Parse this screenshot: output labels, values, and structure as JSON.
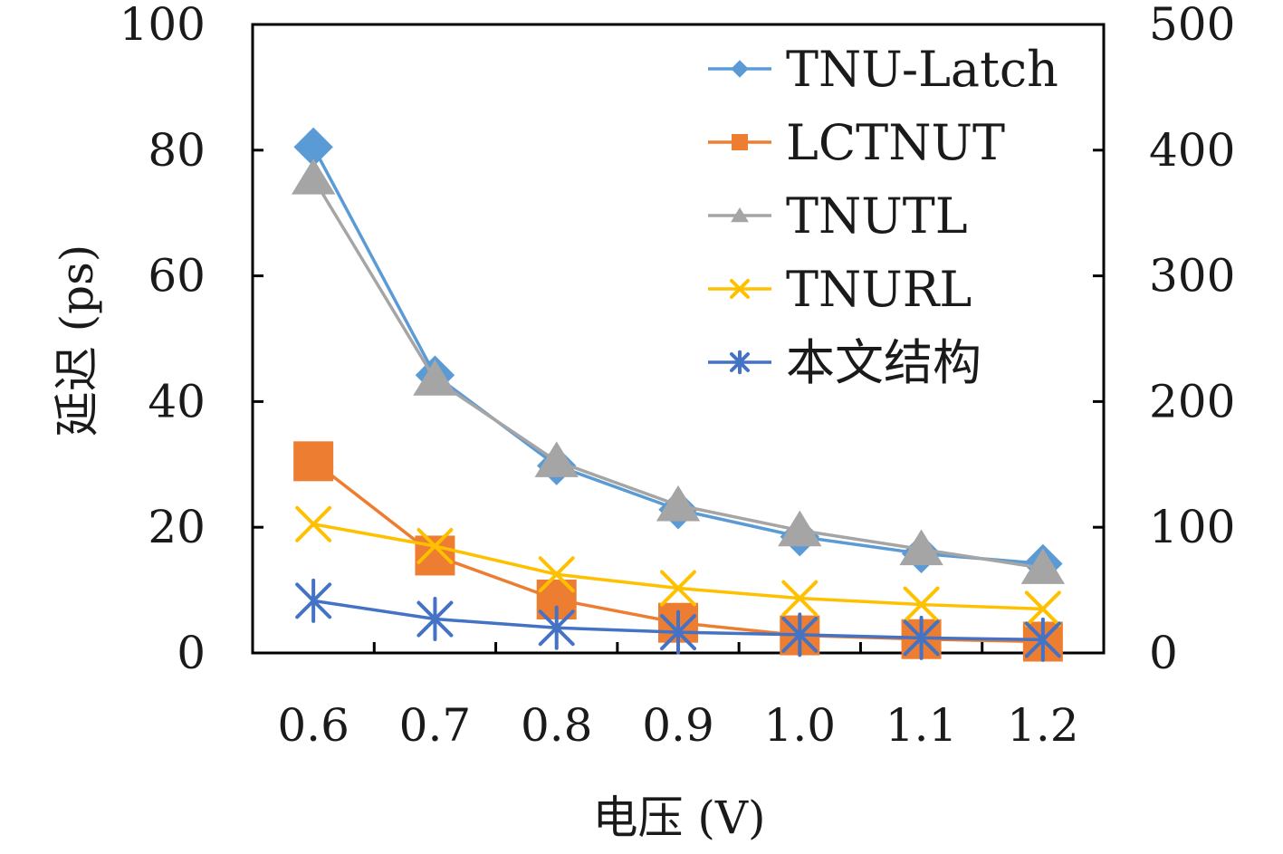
{
  "chart_data": {
    "type": "line",
    "title": "",
    "xlabel": "电压 (V)",
    "ylabel": "延迟 (ps)",
    "categories": [
      "0.6",
      "0.7",
      "0.8",
      "0.9",
      "1.0",
      "1.1",
      "1.2"
    ],
    "ylim": [
      0,
      100
    ],
    "yticks": [
      "0",
      "20",
      "40",
      "60",
      "80",
      "100"
    ],
    "y2lim": [
      0,
      500
    ],
    "y2ticks": [
      "0",
      "100",
      "200",
      "300",
      "400",
      "500"
    ],
    "legend_position": "top-right",
    "series": [
      {
        "name": "TNU-Latch",
        "axis": "left",
        "marker": "diamond",
        "color": "#5b9bd5",
        "values": [
          80.5,
          44.2,
          29.8,
          22.8,
          18.5,
          15.8,
          14.2
        ]
      },
      {
        "name": "LCTNUT",
        "axis": "left",
        "marker": "square",
        "color": "#ed7d31",
        "values": [
          30.5,
          15.5,
          8.5,
          4.8,
          2.8,
          2.2,
          1.8
        ]
      },
      {
        "name": "TNUTL",
        "axis": "left",
        "marker": "triangle",
        "color": "#a5a5a5",
        "values": [
          75.5,
          43.5,
          30.5,
          23.5,
          19.5,
          16.5,
          13.5
        ]
      },
      {
        "name": "TNURL",
        "axis": "left",
        "marker": "x",
        "color": "#ffc000",
        "values": [
          20.5,
          17.0,
          12.5,
          10.3,
          8.7,
          7.7,
          7.0
        ]
      },
      {
        "name": "本文结构",
        "axis": "left",
        "marker": "star",
        "color": "#4472c4",
        "values": [
          8.3,
          5.4,
          4.0,
          3.3,
          2.9,
          2.4,
          2.1
        ]
      }
    ]
  }
}
